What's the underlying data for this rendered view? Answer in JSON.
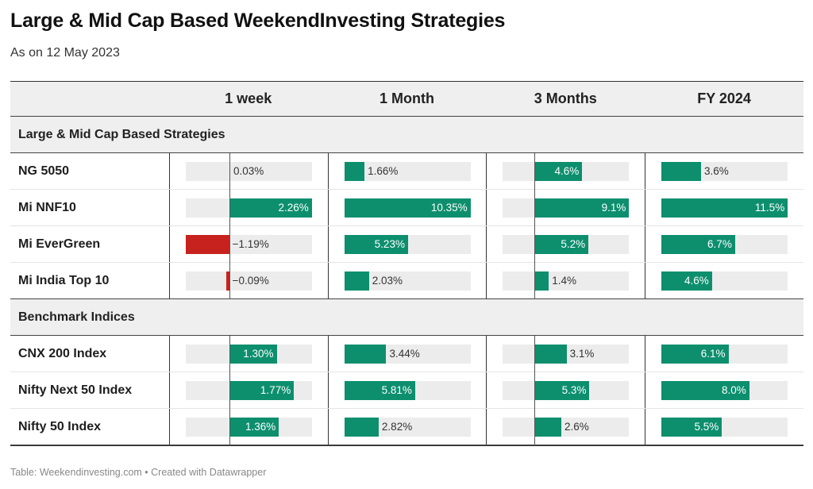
{
  "header": {
    "title": "Large & Mid Cap Based WeekendInvesting Strategies",
    "subtitle": "As on 12 May 2023"
  },
  "columns": [
    "1 week",
    "1 Month",
    "3 Months",
    "FY 2024"
  ],
  "footer": {
    "source": "Table: Weekendinvesting.com • Created with Datawrapper"
  },
  "colors": {
    "positive": "#0d8f6e",
    "negative": "#c7221d",
    "track": "#ececec",
    "group_background": "#efefef"
  },
  "chart_data": {
    "type": "table",
    "columns": [
      "1 week",
      "1 Month",
      "3 Months",
      "FY 2024"
    ],
    "column_ranges": [
      [
        -1.19,
        2.26
      ],
      [
        0,
        10.35
      ],
      [
        -3,
        9.1
      ],
      [
        0,
        11.5
      ]
    ],
    "groups": [
      {
        "name": "Large & Mid Cap Based Strategies",
        "rows": [
          {
            "name": "NG 5050",
            "values": [
              0.03,
              1.66,
              4.6,
              3.6
            ],
            "labels": [
              "0.03%",
              "1.66%",
              "4.6%",
              "3.6%"
            ]
          },
          {
            "name": "Mi NNF10",
            "values": [
              2.26,
              10.35,
              9.1,
              11.5
            ],
            "labels": [
              "2.26%",
              "10.35%",
              "9.1%",
              "11.5%"
            ]
          },
          {
            "name": "Mi EverGreen",
            "values": [
              -1.19,
              5.23,
              5.2,
              6.7
            ],
            "labels": [
              "−1.19%",
              "5.23%",
              "5.2%",
              "6.7%"
            ]
          },
          {
            "name": "Mi India Top 10",
            "values": [
              -0.09,
              2.03,
              1.4,
              4.6
            ],
            "labels": [
              "−0.09%",
              "2.03%",
              "1.4%",
              "4.6%"
            ]
          }
        ]
      },
      {
        "name": "Benchmark Indices",
        "rows": [
          {
            "name": "CNX 200 Index",
            "values": [
              1.3,
              3.44,
              3.1,
              6.1
            ],
            "labels": [
              "1.30%",
              "3.44%",
              "3.1%",
              "6.1%"
            ]
          },
          {
            "name": "Nifty Next 50 Index",
            "values": [
              1.77,
              5.81,
              5.3,
              8.0
            ],
            "labels": [
              "1.77%",
              "5.81%",
              "5.3%",
              "8.0%"
            ]
          },
          {
            "name": "Nifty 50 Index",
            "values": [
              1.36,
              2.82,
              2.6,
              5.5
            ],
            "labels": [
              "1.36%",
              "2.82%",
              "2.6%",
              "5.5%"
            ]
          }
        ]
      }
    ]
  }
}
